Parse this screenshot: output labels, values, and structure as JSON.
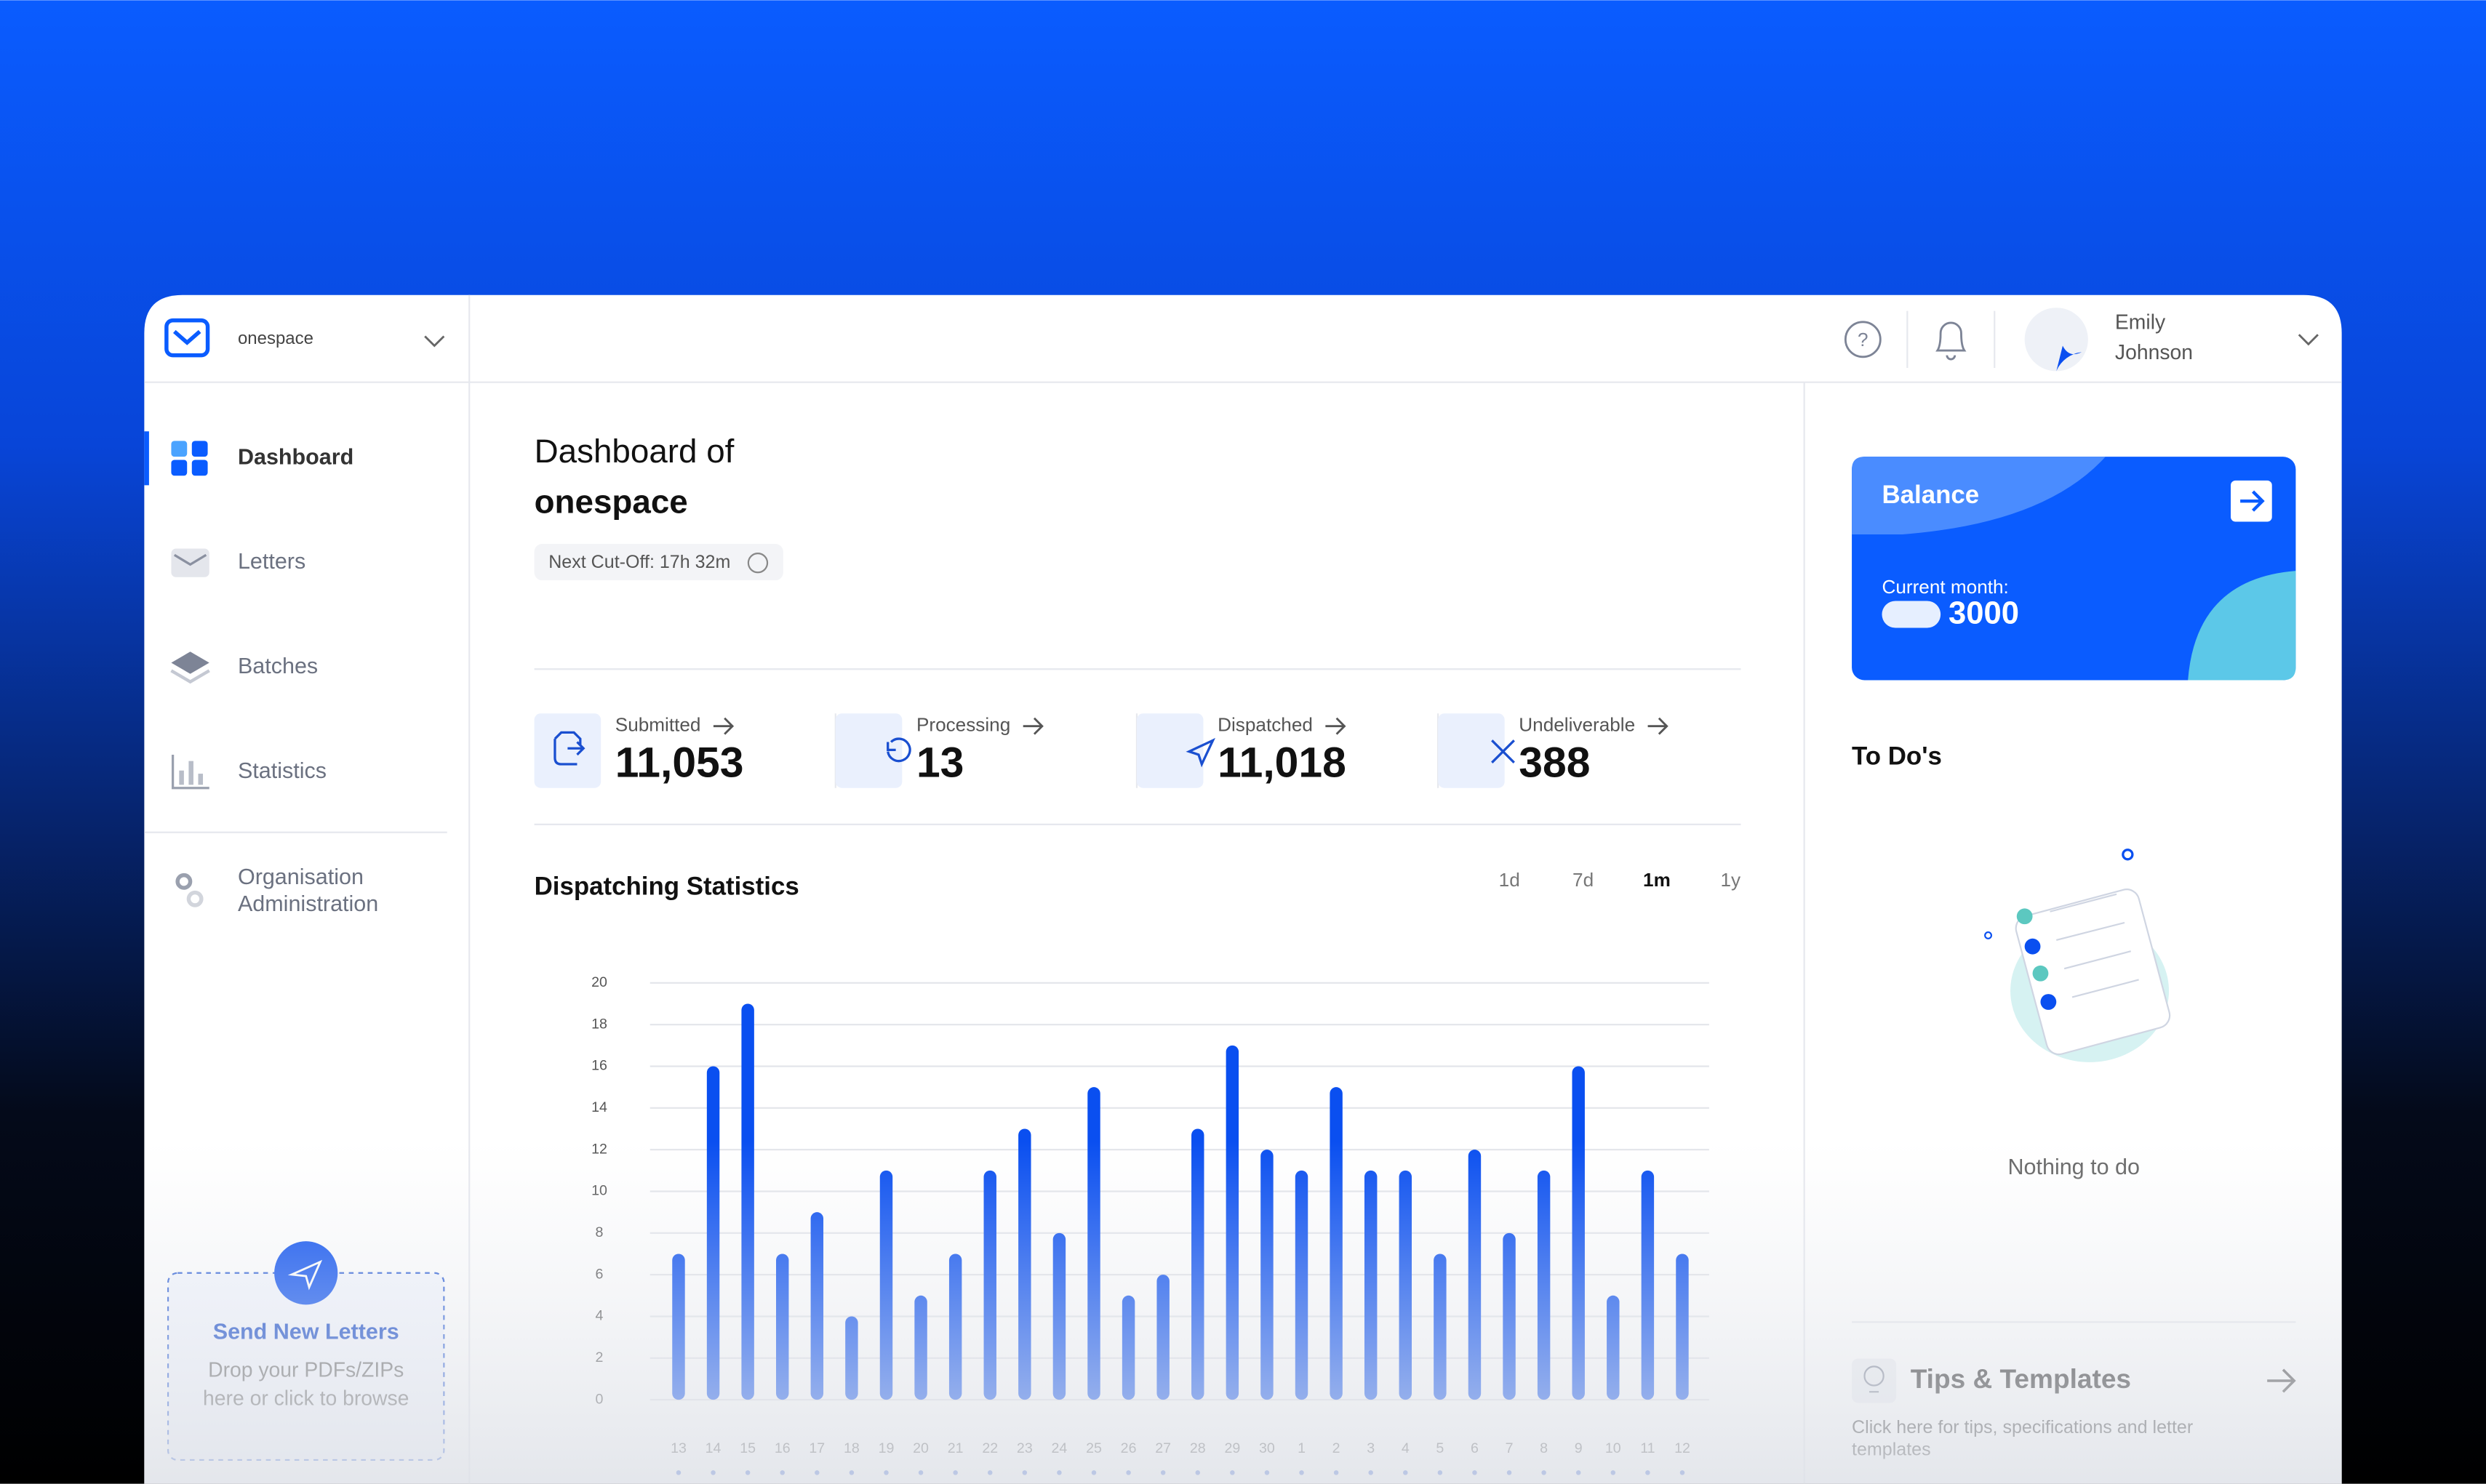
{
  "org": "onespace",
  "user": {
    "first": "Emily",
    "last": "Johnson"
  },
  "nav": [
    "Dashboard",
    "Letters",
    "Batches",
    "Statistics"
  ],
  "admin": [
    "Organisation",
    "Administration"
  ],
  "upload": {
    "title": "Send New Letters",
    "hint": [
      "Drop your PDFs/ZIPs",
      "here or click to browse"
    ]
  },
  "heading": {
    "line1": "Dashboard of",
    "line2": "onespace",
    "cutoff": "Next Cut-Off: 17h 32m"
  },
  "stats": [
    {
      "label": "Submitted",
      "value": "11,053"
    },
    {
      "label": "Processing",
      "value": "13"
    },
    {
      "label": "Dispatched",
      "value": "11,018"
    },
    {
      "label": "Undeliverable",
      "value": "388"
    }
  ],
  "ranges": [
    "1d",
    "7d",
    "1m",
    "1y"
  ],
  "chart_data": {
    "type": "bar",
    "title": "Dispatching Statistics",
    "categories": [
      "13",
      "14",
      "15",
      "16",
      "17",
      "18",
      "19",
      "20",
      "21",
      "22",
      "23",
      "24",
      "25",
      "26",
      "27",
      "28",
      "29",
      "30",
      "1",
      "2",
      "3",
      "4",
      "5",
      "6",
      "7",
      "8",
      "9",
      "10",
      "11",
      "12"
    ],
    "values": [
      7,
      16,
      19,
      7,
      9,
      4,
      11,
      5,
      7,
      11,
      13,
      8,
      15,
      5,
      6,
      13,
      17,
      12,
      11,
      15,
      11,
      11,
      7,
      12,
      8,
      11,
      16,
      5,
      11,
      7
    ],
    "color": "#0a4ff0",
    "ylim": [
      0,
      20
    ],
    "yticks": [
      0,
      2,
      4,
      6,
      8,
      10,
      12,
      14,
      16,
      18,
      20
    ],
    "grid": true
  },
  "balance": {
    "title": "Balance",
    "label": "Current month:",
    "value": "3000"
  },
  "todo": {
    "title": "To Do's",
    "empty": "Nothing to do"
  },
  "tips": {
    "title": "Tips & Templates",
    "text": [
      "Click here for tips, specifications and letter",
      "templates"
    ]
  }
}
